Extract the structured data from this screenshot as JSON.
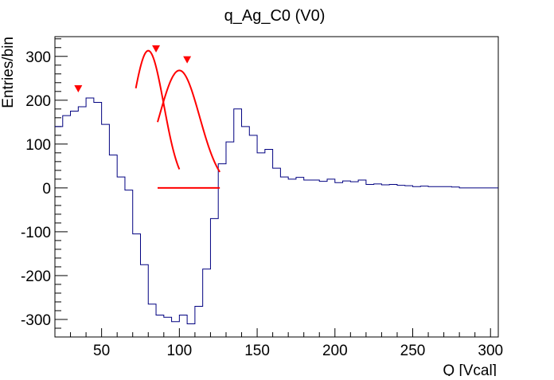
{
  "chart_data": {
    "type": "histogram",
    "title": "q_Ag_C0 (V0)",
    "xlabel": "Q [Vcal]",
    "ylabel": "Entries/bin",
    "xlim": [
      20,
      305
    ],
    "ylim": [
      -340,
      345
    ],
    "x_ticks": [
      50,
      100,
      150,
      200,
      250,
      300
    ],
    "y_ticks": [
      -300,
      -200,
      -100,
      0,
      100,
      200,
      300
    ],
    "grid": false,
    "histogram_color": "#000080",
    "fit_color": "#ff0000",
    "bin_width": 5,
    "bin_start": 20,
    "bin_values": [
      140,
      165,
      175,
      185,
      205,
      195,
      145,
      75,
      25,
      -5,
      -105,
      -175,
      -265,
      -290,
      -295,
      -305,
      -290,
      -310,
      -270,
      -185,
      -70,
      55,
      105,
      180,
      140,
      120,
      80,
      88,
      45,
      25,
      20,
      24,
      18,
      18,
      15,
      20,
      12,
      16,
      14,
      18,
      8,
      9,
      7,
      8,
      6,
      5,
      3,
      4,
      3,
      3,
      3,
      2
    ],
    "tail_value": 0,
    "tail_end": 305,
    "peak_markers": [
      {
        "x": 35,
        "y": 227
      },
      {
        "x": 85,
        "y": 318
      },
      {
        "x": 105,
        "y": 293
      }
    ],
    "fit_curves": [
      {
        "x_start": 72,
        "x_end": 100,
        "peak_x": 80,
        "peak_y": 313,
        "sigma": 10
      },
      {
        "x_start": 86,
        "x_end": 126,
        "peak_x": 100,
        "peak_y": 268,
        "sigma": 13
      }
    ],
    "baseline_segment": {
      "x_start": 86,
      "x_end": 126,
      "y": 0
    }
  }
}
